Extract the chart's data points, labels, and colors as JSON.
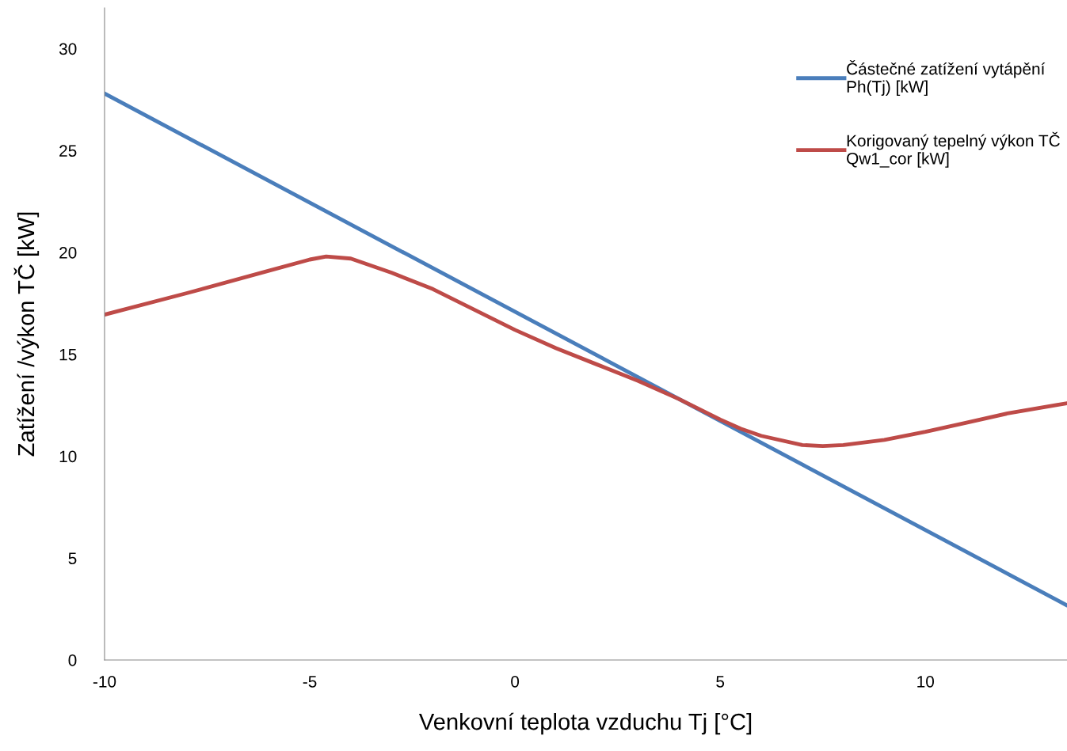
{
  "chart_data": {
    "type": "line",
    "xlabel": "Venkovní teplota vzduchu Tj [°C]",
    "ylabel": "Zatížení /výkon TČ [kW]",
    "xlim": [
      -10,
      13.45
    ],
    "xticks": [
      -10,
      -5,
      0,
      5,
      10
    ],
    "ylim": [
      0,
      32
    ],
    "yticks": [
      0,
      5,
      10,
      15,
      20,
      25,
      30
    ],
    "grid": false,
    "legend": "top right",
    "marker": "none",
    "line_style": "solid",
    "series": [
      {
        "name": "Částečné zatížení vytápění\nPh(Tj) [kW]",
        "color": "#4a7ebb",
        "x": [
          -10,
          13.45
        ],
        "values": [
          27.8,
          2.68
        ]
      },
      {
        "name": "Korigovaný tepelný výkon TČ\nQw1_cor [kW]",
        "color": "#be4b48",
        "x": [
          -10,
          -8,
          -6,
          -5,
          -4.6,
          -4,
          -3,
          -2,
          -1,
          0,
          1,
          2,
          3,
          4,
          5,
          5.5,
          6,
          7,
          7.5,
          8,
          9,
          10,
          11,
          12,
          13.45
        ],
        "values": [
          16.95,
          18.0,
          19.1,
          19.65,
          19.8,
          19.7,
          19.0,
          18.2,
          17.2,
          16.2,
          15.3,
          14.5,
          13.7,
          12.8,
          11.8,
          11.35,
          11.0,
          10.55,
          10.5,
          10.55,
          10.8,
          11.2,
          11.65,
          12.1,
          12.6
        ]
      }
    ]
  }
}
